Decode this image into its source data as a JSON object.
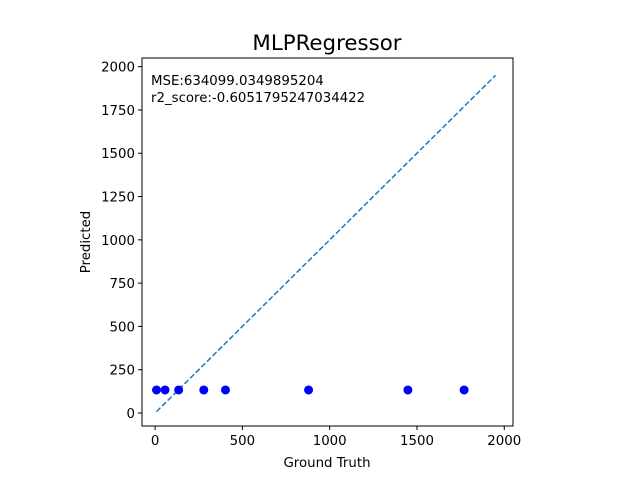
{
  "chart_data": {
    "type": "scatter",
    "title": "MLPRegressor",
    "xlabel": "Ground Truth",
    "ylabel": "Predicted",
    "xlim": [
      -75,
      2050
    ],
    "ylim": [
      -75,
      2050
    ],
    "xticks": [
      0,
      500,
      1000,
      1500,
      2000
    ],
    "yticks": [
      0,
      250,
      500,
      750,
      1000,
      1250,
      1500,
      1750,
      2000
    ],
    "grid": false,
    "annotations": [
      "MSE:634099.0349895204",
      "r2_score:-0.6051795247034422"
    ],
    "series": [
      {
        "kind": "scatter",
        "color": "#0000ff",
        "points": [
          {
            "x": 8,
            "y": 133
          },
          {
            "x": 57,
            "y": 133
          },
          {
            "x": 135,
            "y": 133
          },
          {
            "x": 279,
            "y": 133
          },
          {
            "x": 403,
            "y": 133
          },
          {
            "x": 879,
            "y": 133
          },
          {
            "x": 1448,
            "y": 133
          },
          {
            "x": 1770,
            "y": 133
          }
        ]
      },
      {
        "kind": "reference-line",
        "style": "dashed",
        "color": "#1f77b4",
        "points": [
          {
            "x": 8,
            "y": 8
          },
          {
            "x": 1950,
            "y": 1950
          }
        ]
      }
    ]
  }
}
